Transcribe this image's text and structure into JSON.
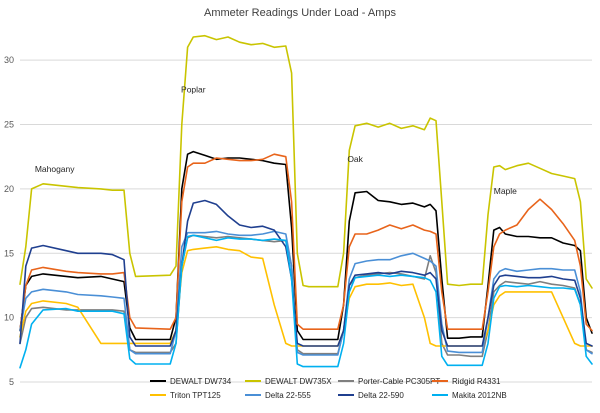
{
  "chart_data": {
    "type": "line",
    "title": "Ammeter Readings Under Load - Amps",
    "xlabel": "",
    "ylabel": "",
    "ylim": [
      5,
      32.5
    ],
    "yticks": [
      5,
      10,
      15,
      20,
      25,
      30
    ],
    "xlim": [
      0,
      99
    ],
    "grid": true,
    "legend_position": "bottom",
    "annotations": [
      {
        "text": "Mahogany",
        "x": 6,
        "y": 21.3
      },
      {
        "text": "Poplar",
        "x": 30,
        "y": 27.5
      },
      {
        "text": "Oak",
        "x": 58,
        "y": 22.1
      },
      {
        "text": "Maple",
        "x": 84,
        "y": 19.6
      }
    ],
    "series": [
      {
        "name": "DEWALT DW734",
        "color": "#000000",
        "x": [
          0,
          1,
          2,
          4,
          8,
          10,
          14,
          16,
          18,
          19,
          20,
          26,
          27,
          28,
          29,
          30,
          32,
          34,
          36,
          38,
          40,
          42,
          44,
          46,
          47,
          48,
          49,
          50,
          52,
          55,
          56,
          57,
          58,
          60,
          62,
          64,
          66,
          68,
          70,
          71,
          72,
          73,
          74,
          76,
          78,
          80,
          81,
          82,
          83,
          84,
          86,
          88,
          90,
          92,
          94,
          96,
          97,
          98,
          99
        ],
        "y": [
          9,
          12.5,
          13.2,
          13.4,
          13.2,
          13.1,
          13.2,
          13,
          12.8,
          9.2,
          8.3,
          8.3,
          10,
          20,
          22.7,
          22.9,
          22.6,
          22.3,
          22.4,
          22.4,
          22.3,
          22.2,
          22,
          21.9,
          17,
          9,
          8.3,
          8.3,
          8.3,
          8.3,
          11,
          17.5,
          19.7,
          19.8,
          19.1,
          19,
          18.8,
          18.9,
          18.6,
          18.8,
          18.3,
          13,
          8.4,
          8.4,
          8.5,
          8.5,
          12.5,
          16.8,
          17,
          16.5,
          16.3,
          16.3,
          16.2,
          16.2,
          15.8,
          15.6,
          15.2,
          10,
          8.8
        ]
      },
      {
        "name": "DEWALT DW735X",
        "color": "#c9c400",
        "x": [
          0,
          1,
          2,
          4,
          8,
          10,
          14,
          16,
          18,
          19,
          20,
          26,
          27,
          28,
          29,
          30,
          32,
          34,
          36,
          38,
          40,
          42,
          44,
          46,
          47,
          48,
          49,
          50,
          52,
          55,
          56,
          57,
          58,
          60,
          62,
          64,
          66,
          68,
          70,
          71,
          72,
          73,
          74,
          76,
          78,
          80,
          81,
          82,
          83,
          84,
          86,
          88,
          90,
          92,
          94,
          96,
          97,
          98,
          99
        ],
        "y": [
          12.6,
          15.5,
          20,
          20.4,
          20.2,
          20.1,
          20,
          19.9,
          19.9,
          15,
          13.2,
          13.3,
          14,
          25,
          31,
          31.8,
          31.9,
          31.6,
          31.8,
          31.4,
          31.2,
          31.3,
          31,
          31.1,
          29,
          15,
          12.5,
          12.4,
          12.4,
          12.4,
          15,
          23,
          24.9,
          25.1,
          24.8,
          25.1,
          24.7,
          24.9,
          24.6,
          25.5,
          25.3,
          19,
          12.6,
          12.5,
          12.6,
          12.6,
          18,
          21.7,
          21.8,
          21.5,
          21.8,
          22,
          21.6,
          21.2,
          21,
          20.8,
          19,
          13,
          12.3
        ]
      },
      {
        "name": "Porter-Cable PC305PT",
        "color": "#7f7f7f",
        "x": [
          0,
          1,
          2,
          4,
          8,
          10,
          14,
          16,
          18,
          19,
          20,
          26,
          27,
          28,
          29,
          30,
          32,
          34,
          36,
          38,
          40,
          42,
          44,
          46,
          47,
          48,
          49,
          50,
          52,
          55,
          56,
          57,
          58,
          60,
          62,
          64,
          66,
          68,
          70,
          71,
          72,
          73,
          74,
          76,
          78,
          80,
          81,
          82,
          83,
          84,
          86,
          88,
          90,
          92,
          94,
          96,
          97,
          98,
          99
        ],
        "y": [
          8,
          10,
          10.7,
          10.8,
          10.6,
          10.6,
          10.6,
          10.6,
          10.5,
          7.5,
          7.3,
          7.3,
          8,
          14,
          16.2,
          16.4,
          16.3,
          16.2,
          16.3,
          16.2,
          16.1,
          16,
          15.9,
          16,
          14,
          7.5,
          7.2,
          7.2,
          7.2,
          7.2,
          9,
          12.5,
          13.1,
          13.3,
          13.4,
          13.5,
          13.4,
          13.2,
          13,
          14.8,
          13.5,
          8,
          7.1,
          7.1,
          7,
          7,
          9,
          12,
          12.5,
          12.8,
          12.7,
          12.6,
          12.8,
          12.6,
          12.5,
          12.3,
          11,
          7.5,
          7.3
        ]
      },
      {
        "name": "Ridgid R4331",
        "color": "#e8641b",
        "x": [
          0,
          1,
          2,
          4,
          8,
          10,
          14,
          16,
          18,
          19,
          20,
          26,
          27,
          28,
          29,
          30,
          32,
          34,
          36,
          38,
          40,
          42,
          44,
          46,
          47,
          48,
          49,
          50,
          52,
          55,
          56,
          57,
          58,
          60,
          62,
          64,
          66,
          68,
          70,
          71,
          72,
          73,
          74,
          76,
          78,
          80,
          81,
          82,
          83,
          84,
          86,
          88,
          90,
          92,
          94,
          96,
          97,
          98,
          99
        ],
        "y": [
          9,
          12.5,
          13.7,
          13.9,
          13.6,
          13.5,
          13.4,
          13.4,
          13.5,
          10,
          9.2,
          9.1,
          10,
          19,
          21.7,
          22,
          22,
          22.4,
          22.3,
          22.2,
          22.2,
          22.3,
          22.7,
          22.5,
          19,
          9.5,
          9.1,
          9.1,
          9.1,
          9.1,
          11,
          15.5,
          16.5,
          16.5,
          16.8,
          17.2,
          16.9,
          17.2,
          16.8,
          16.7,
          16.5,
          12,
          9.1,
          9.1,
          9.1,
          9.1,
          12,
          15.5,
          16.5,
          16.8,
          17.2,
          18.4,
          19.2,
          18.4,
          17.3,
          16,
          14,
          9.5,
          9
        ]
      },
      {
        "name": "Triton TPT125",
        "color": "#ffc000",
        "x": [
          0,
          1,
          2,
          4,
          8,
          10,
          14,
          16,
          18,
          19,
          20,
          26,
          27,
          28,
          29,
          30,
          32,
          34,
          36,
          38,
          40,
          42,
          44,
          46,
          47,
          48,
          49,
          50,
          52,
          55,
          56,
          57,
          58,
          60,
          62,
          64,
          66,
          68,
          70,
          71,
          72,
          73,
          74,
          76,
          78,
          80,
          81,
          82,
          83,
          84,
          86,
          88,
          90,
          92,
          94,
          96,
          97,
          98,
          99
        ],
        "y": [
          8.5,
          10.5,
          11.1,
          11.3,
          11.1,
          10.8,
          8,
          8,
          8,
          8,
          8,
          8,
          9,
          13.5,
          15.2,
          15.3,
          15.4,
          15.5,
          15.3,
          15.2,
          14.7,
          14.6,
          11,
          8,
          7.8,
          7.8,
          7.8,
          7.8,
          7.8,
          7.8,
          9,
          11.5,
          12.4,
          12.6,
          12.6,
          12.7,
          12.5,
          12.6,
          10,
          8,
          7.8,
          7.8,
          7.8,
          7.8,
          7.8,
          7.8,
          9,
          11,
          11.7,
          12,
          12,
          12,
          12,
          12,
          10,
          8,
          7.8,
          7.8,
          7.8
        ]
      },
      {
        "name": "Delta 22-555",
        "color": "#4a8fd6",
        "x": [
          0,
          1,
          2,
          4,
          8,
          10,
          14,
          16,
          18,
          19,
          20,
          26,
          27,
          28,
          29,
          30,
          32,
          34,
          36,
          38,
          40,
          42,
          44,
          46,
          47,
          48,
          49,
          50,
          52,
          55,
          56,
          57,
          58,
          60,
          62,
          64,
          66,
          68,
          70,
          71,
          72,
          73,
          74,
          76,
          78,
          80,
          81,
          82,
          83,
          84,
          86,
          88,
          90,
          92,
          94,
          96,
          97,
          98,
          99
        ],
        "y": [
          9,
          11.5,
          12,
          12.2,
          12,
          11.8,
          11.7,
          11.6,
          11.5,
          7.5,
          7.2,
          7.2,
          9,
          15.5,
          16.6,
          16.6,
          16.6,
          16.7,
          16.5,
          16.4,
          16.4,
          16.5,
          16.7,
          16.5,
          14,
          7.3,
          7.1,
          7.1,
          7.1,
          7.1,
          9,
          13,
          14.2,
          14.4,
          14.5,
          14.5,
          14.8,
          15,
          14.6,
          14.4,
          14,
          9.5,
          7.4,
          7.3,
          7.3,
          7.3,
          10,
          13,
          13.6,
          13.8,
          13.6,
          13.7,
          13.8,
          13.8,
          13.7,
          13.7,
          12,
          7.5,
          7.2
        ]
      },
      {
        "name": "Delta 22-590",
        "color": "#1f3f8f",
        "x": [
          0,
          1,
          2,
          4,
          8,
          10,
          14,
          16,
          18,
          19,
          20,
          26,
          27,
          28,
          29,
          30,
          32,
          34,
          36,
          38,
          40,
          42,
          44,
          46,
          47,
          48,
          49,
          50,
          52,
          55,
          56,
          57,
          58,
          60,
          62,
          64,
          66,
          68,
          70,
          71,
          72,
          73,
          74,
          76,
          78,
          80,
          81,
          82,
          83,
          84,
          86,
          88,
          90,
          92,
          94,
          96,
          97,
          98,
          99
        ],
        "y": [
          8,
          14,
          15.4,
          15.6,
          15.2,
          15,
          15,
          14.9,
          14.5,
          8.5,
          7.8,
          7.8,
          9,
          14,
          17.5,
          18.9,
          19.1,
          18.8,
          17.9,
          17.2,
          17,
          17.1,
          16.8,
          15.5,
          13,
          8,
          7.8,
          7.8,
          7.8,
          7.8,
          9,
          12.5,
          13.3,
          13.4,
          13.5,
          13.4,
          13.6,
          13.5,
          13.3,
          13.5,
          13,
          9,
          7.8,
          7.8,
          7.8,
          7.8,
          10,
          12.5,
          13.2,
          13.3,
          13.2,
          13.1,
          13.1,
          13.2,
          13,
          12.9,
          11.5,
          8,
          7.8
        ]
      },
      {
        "name": "Makita 2012NB",
        "color": "#00b0f0",
        "x": [
          0,
          1,
          2,
          4,
          8,
          10,
          14,
          16,
          18,
          19,
          20,
          26,
          27,
          28,
          29,
          30,
          32,
          34,
          36,
          38,
          40,
          42,
          44,
          46,
          47,
          48,
          49,
          50,
          52,
          55,
          56,
          57,
          58,
          60,
          62,
          64,
          66,
          68,
          70,
          71,
          72,
          73,
          74,
          76,
          78,
          80,
          81,
          82,
          83,
          84,
          86,
          88,
          90,
          92,
          94,
          96,
          97,
          98,
          99
        ],
        "y": [
          6.1,
          7.5,
          9.5,
          10.6,
          10.7,
          10.5,
          10.5,
          10.5,
          10.3,
          6.8,
          6.4,
          6.4,
          8,
          14,
          16.3,
          16.4,
          16.2,
          16,
          16.2,
          16.1,
          16.1,
          16,
          16.1,
          16,
          13,
          6.4,
          6.2,
          6.2,
          6.2,
          6.2,
          8,
          12,
          13.1,
          13.2,
          13.3,
          13.2,
          13.3,
          13.2,
          13.1,
          12.9,
          12,
          7,
          6.3,
          6.3,
          6.3,
          6.3,
          8,
          11.5,
          12.4,
          12.5,
          12.4,
          12.5,
          12.4,
          12.3,
          12.3,
          12.2,
          11,
          7,
          6.4
        ]
      }
    ]
  }
}
